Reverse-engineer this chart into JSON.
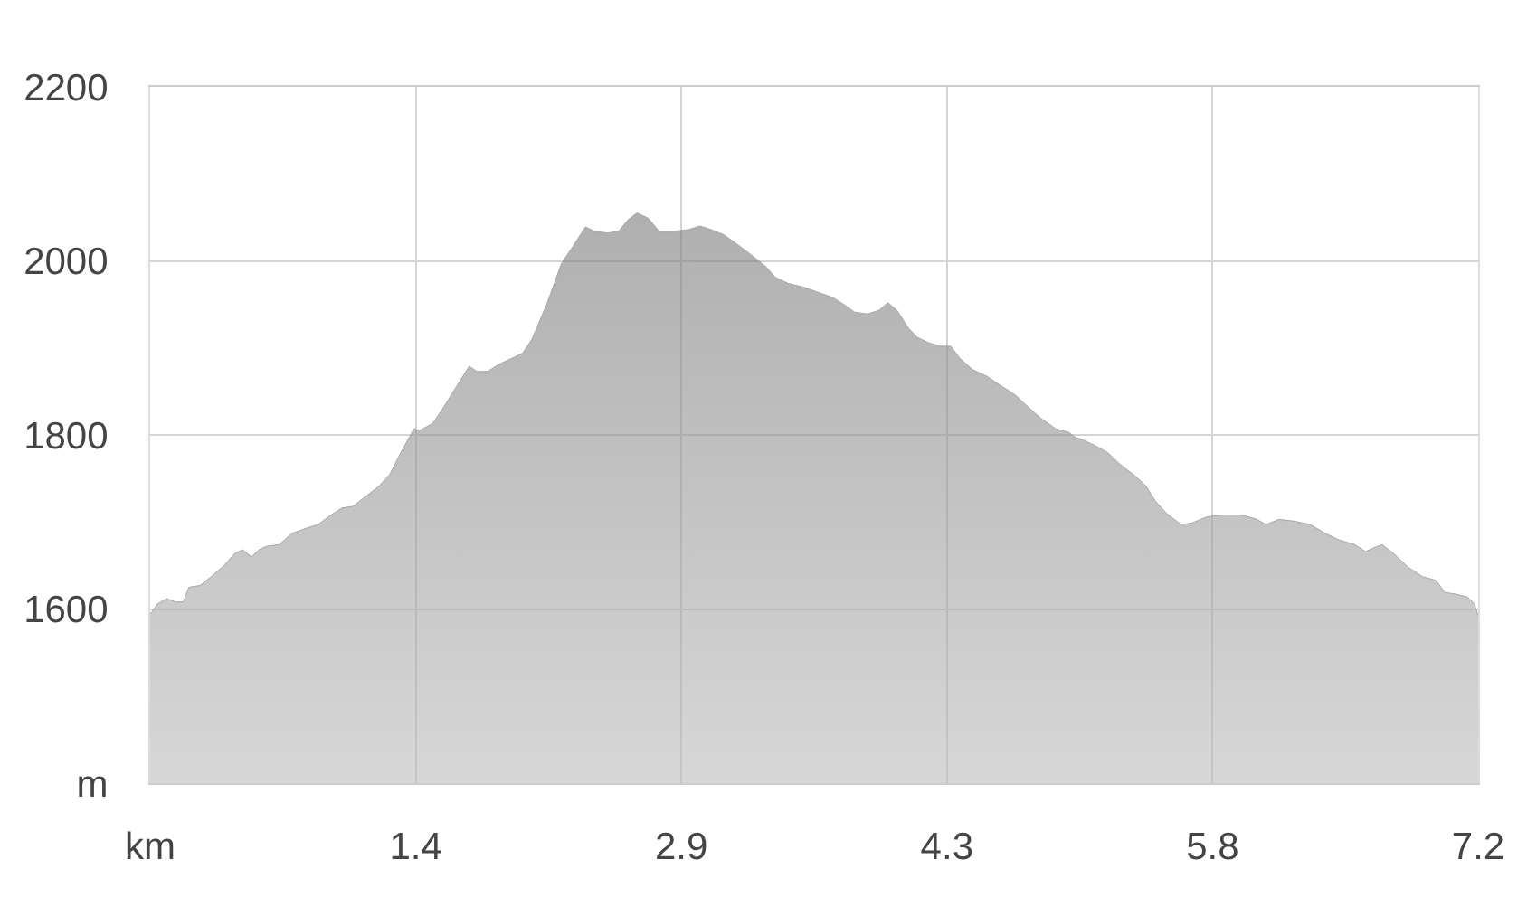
{
  "chart_data": {
    "type": "area",
    "color": "#a6a6a6",
    "x": [
      0.0,
      0.04,
      0.09,
      0.14,
      0.18,
      0.21,
      0.27,
      0.33,
      0.4,
      0.46,
      0.5,
      0.55,
      0.59,
      0.63,
      0.7,
      0.77,
      0.85,
      0.91,
      0.98,
      1.04,
      1.1,
      1.16,
      1.24,
      1.3,
      1.36,
      1.43,
      1.46,
      1.53,
      1.58,
      1.65,
      1.73,
      1.77,
      1.83,
      1.89,
      1.96,
      2.02,
      2.07,
      2.15,
      2.23,
      2.29,
      2.36,
      2.41,
      2.48,
      2.54,
      2.59,
      2.64,
      2.7,
      2.76,
      2.84,
      2.92,
      2.98,
      3.04,
      3.11,
      3.19,
      3.27,
      3.34,
      3.39,
      3.46,
      3.54,
      3.62,
      3.7,
      3.76,
      3.82,
      3.89,
      3.95,
      4.0,
      4.05,
      4.11,
      4.16,
      4.22,
      4.28,
      4.34,
      4.39,
      4.46,
      4.54,
      4.61,
      4.69,
      4.75,
      4.83,
      4.91,
      4.98,
      5.02,
      5.06,
      5.12,
      5.19,
      5.26,
      5.34,
      5.4,
      5.45,
      5.51,
      5.59,
      5.65,
      5.73,
      5.82,
      5.92,
      6.0,
      6.05,
      6.12,
      6.2,
      6.29,
      6.37,
      6.45,
      6.53,
      6.59,
      6.63,
      6.68,
      6.74,
      6.82,
      6.9,
      6.97,
      7.02,
      7.08,
      7.14,
      7.18,
      7.2
    ],
    "values": [
      1594,
      1606,
      1612,
      1608,
      1608,
      1625,
      1627,
      1637,
      1650,
      1664,
      1668,
      1660,
      1668,
      1672,
      1674,
      1687,
      1693,
      1697,
      1708,
      1716,
      1718,
      1728,
      1741,
      1755,
      1780,
      1807,
      1805,
      1813,
      1828,
      1852,
      1879,
      1873,
      1873,
      1881,
      1888,
      1894,
      1910,
      1950,
      1997,
      2016,
      2039,
      2034,
      2032,
      2034,
      2047,
      2055,
      2049,
      2034,
      2034,
      2036,
      2040,
      2036,
      2030,
      2018,
      2005,
      1993,
      1981,
      1974,
      1970,
      1964,
      1958,
      1950,
      1941,
      1939,
      1943,
      1952,
      1943,
      1923,
      1912,
      1906,
      1902,
      1902,
      1888,
      1875,
      1867,
      1857,
      1846,
      1834,
      1819,
      1807,
      1803,
      1797,
      1794,
      1788,
      1780,
      1766,
      1753,
      1741,
      1724,
      1710,
      1697,
      1699,
      1706,
      1708,
      1708,
      1703,
      1697,
      1703,
      1701,
      1697,
      1687,
      1679,
      1674,
      1666,
      1670,
      1674,
      1664,
      1648,
      1637,
      1633,
      1619,
      1617,
      1614,
      1606,
      1592
    ],
    "xlim": [
      0,
      7.2
    ],
    "xticks": [
      {
        "value": 0,
        "label": "km"
      },
      {
        "value": 1.44,
        "label": "1.4"
      },
      {
        "value": 2.88,
        "label": "2.9"
      },
      {
        "value": 4.32,
        "label": "4.3"
      },
      {
        "value": 5.76,
        "label": "5.8"
      },
      7.2
    ],
    "ylim": [
      1400,
      2200
    ],
    "yticks": [
      {
        "value": 1400,
        "label": "m"
      },
      1600,
      1800,
      2000,
      2200
    ],
    "grid": true
  }
}
